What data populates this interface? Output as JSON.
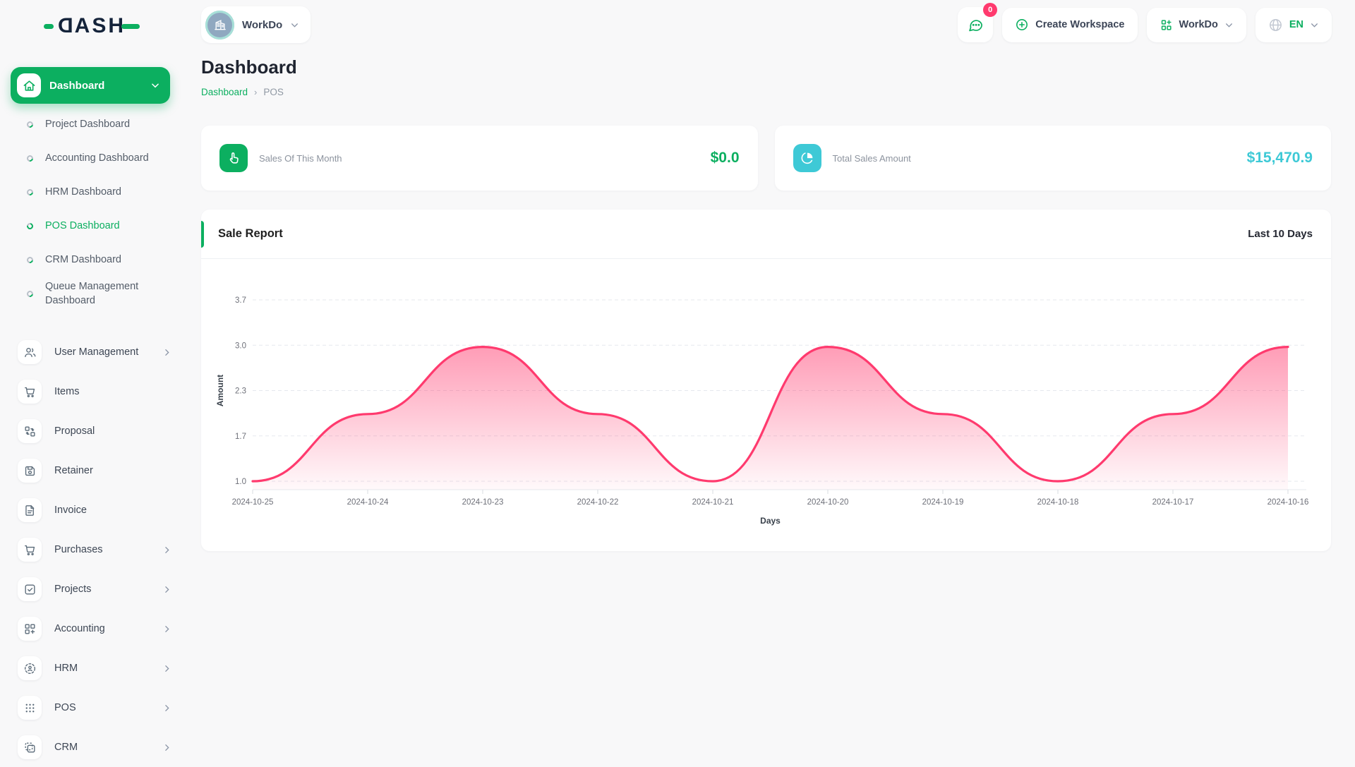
{
  "brand": {
    "logo_text": "DASH"
  },
  "header": {
    "workspace_name": "WorkDo",
    "notifications_count": "0",
    "create_workspace_label": "Create Workspace",
    "workspace_dropdown_label": "WorkDo",
    "language_label": "EN"
  },
  "sidebar": {
    "active_group": {
      "label": "Dashboard"
    },
    "sub_items": [
      {
        "label": "Project Dashboard",
        "active": false
      },
      {
        "label": "Accounting Dashboard",
        "active": false
      },
      {
        "label": "HRM Dashboard",
        "active": false
      },
      {
        "label": "POS Dashboard",
        "active": true
      },
      {
        "label": "CRM Dashboard",
        "active": false
      },
      {
        "label": "Queue Management Dashboard",
        "active": false
      }
    ],
    "items": [
      {
        "id": "user-management",
        "label": "User Management",
        "expandable": true
      },
      {
        "id": "items",
        "label": "Items",
        "expandable": false
      },
      {
        "id": "proposal",
        "label": "Proposal",
        "expandable": false
      },
      {
        "id": "retainer",
        "label": "Retainer",
        "expandable": false
      },
      {
        "id": "invoice",
        "label": "Invoice",
        "expandable": false
      },
      {
        "id": "purchases",
        "label": "Purchases",
        "expandable": true
      },
      {
        "id": "projects",
        "label": "Projects",
        "expandable": true
      },
      {
        "id": "accounting",
        "label": "Accounting",
        "expandable": true
      },
      {
        "id": "hrm",
        "label": "HRM",
        "expandable": true
      },
      {
        "id": "pos",
        "label": "POS",
        "expandable": true
      },
      {
        "id": "crm",
        "label": "CRM",
        "expandable": true
      }
    ]
  },
  "page": {
    "title": "Dashboard",
    "breadcrumb": {
      "root": "Dashboard",
      "current": "POS"
    }
  },
  "stats": [
    {
      "label": "Sales Of This Month",
      "value": "$0.0",
      "accent": "#0caf60",
      "icon": "hand-pointer-icon"
    },
    {
      "label": "Total Sales Amount",
      "value": "$15,470.9",
      "accent": "#3ec9d6",
      "icon": "pie-chart-icon"
    }
  ],
  "report": {
    "title": "Sale Report",
    "range_label": "Last 10 Days"
  },
  "chart_data": {
    "type": "area",
    "title": "Sale Report",
    "x": [
      "2024-10-25",
      "2024-10-24",
      "2024-10-23",
      "2024-10-22",
      "2024-10-21",
      "2024-10-20",
      "2024-10-19",
      "2024-10-18",
      "2024-10-17",
      "2024-10-16"
    ],
    "values": [
      1.0,
      2.0,
      3.0,
      2.0,
      1.0,
      3.0,
      2.0,
      1.0,
      2.0,
      3.0
    ],
    "xlabel": "Days",
    "ylabel": "Amount",
    "y_ticks": [
      1.0,
      1.7,
      2.3,
      3.0,
      3.7
    ],
    "ylim": [
      1.0,
      3.7
    ],
    "grid": "dashed",
    "line_color": "#ff3a6e",
    "fill_color": "#ff3a6e",
    "curve": "smooth"
  }
}
